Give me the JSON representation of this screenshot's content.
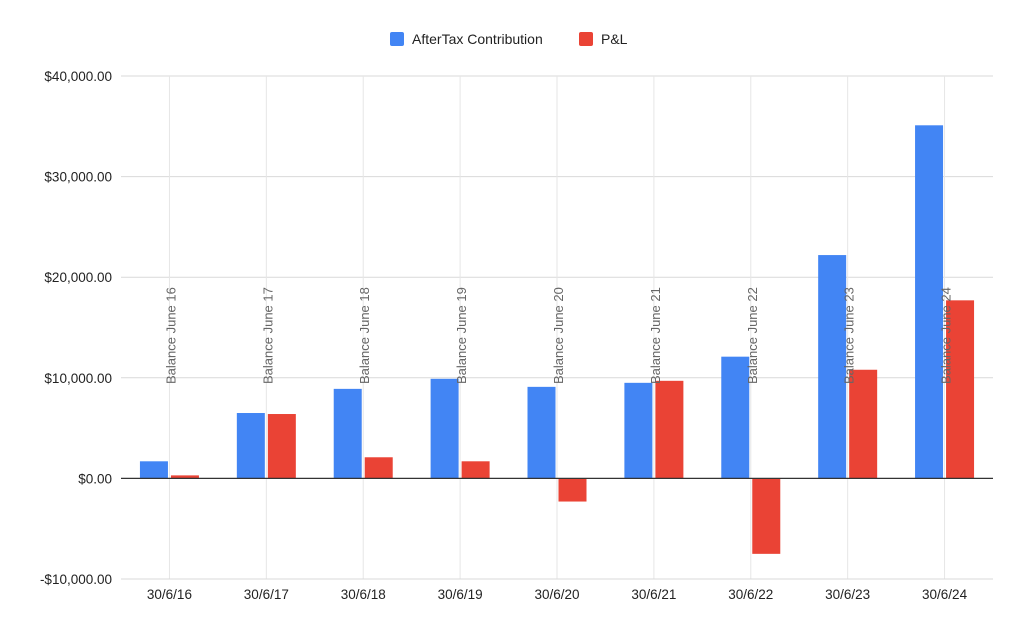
{
  "chart_data": {
    "type": "bar",
    "title": "",
    "xlabel": "",
    "ylabel": "",
    "categories": [
      "30/6/16",
      "30/6/17",
      "30/6/18",
      "30/6/19",
      "30/6/20",
      "30/6/21",
      "30/6/22",
      "30/6/23",
      "30/6/24"
    ],
    "series": [
      {
        "name": "AfterTax Contribution",
        "color": "#4285f4",
        "values": [
          1700,
          6500,
          8900,
          9900,
          9100,
          9500,
          12100,
          22200,
          35100
        ]
      },
      {
        "name": "P&L",
        "color": "#ea4335",
        "values": [
          300,
          6400,
          2100,
          1700,
          -2300,
          9700,
          -7500,
          10800,
          17700
        ]
      }
    ],
    "ylim": [
      -10000,
      40000
    ],
    "yticks": [
      -10000,
      0,
      10000,
      20000,
      30000,
      40000
    ],
    "ytick_labels": [
      "-$10,000.00",
      "$0.00",
      "$10,000.00",
      "$20,000.00",
      "$30,000.00",
      "$40,000.00"
    ],
    "annotations": [
      "Balance June 16",
      "Balance June 17",
      "Balance June 18",
      "Balance June 19",
      "Balance June 20",
      "Balance June 21",
      "Balance June 22",
      "Balance June 23",
      "Balance June 24"
    ],
    "legend_position": "top-center",
    "grid": true
  }
}
